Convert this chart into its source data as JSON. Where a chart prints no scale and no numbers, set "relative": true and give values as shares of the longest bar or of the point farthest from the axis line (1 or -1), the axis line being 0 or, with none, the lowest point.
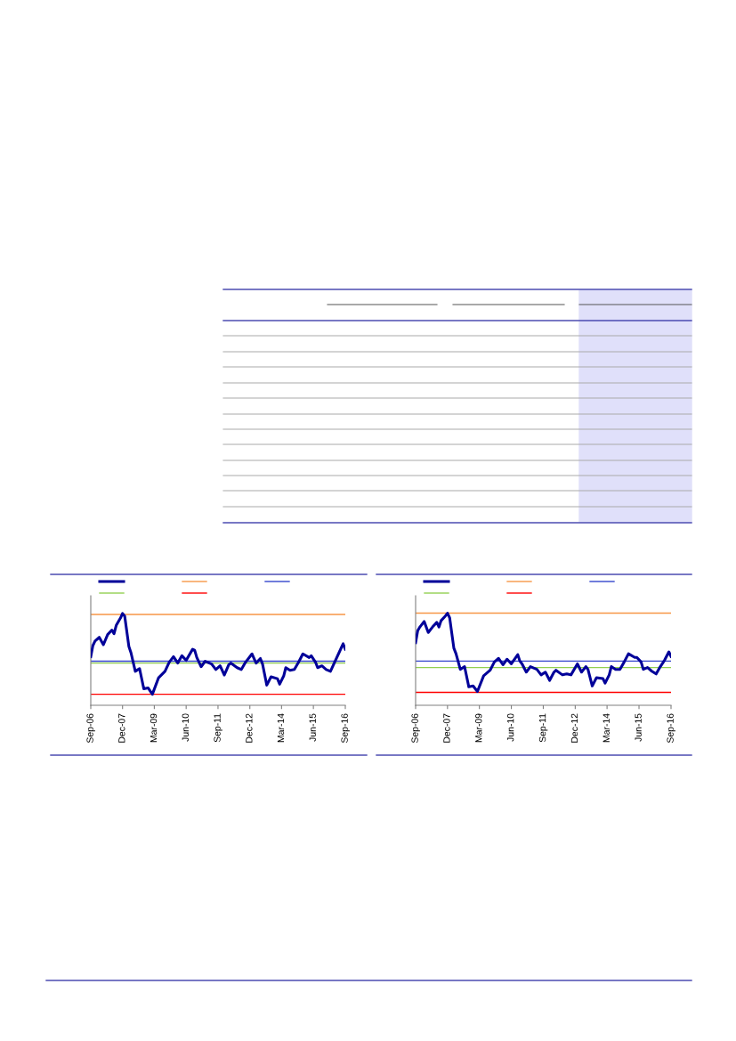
{
  "chart_data": [
    {
      "type": "line",
      "relative": true,
      "grid": false,
      "marker": "none",
      "line_style": "solid",
      "x": [
        "2006-09",
        "2006-10",
        "2006-11",
        "2007-01",
        "2007-03",
        "2007-05",
        "2007-07",
        "2007-08",
        "2007-09",
        "2007-11",
        "2007-12",
        "2008-01",
        "2008-03",
        "2008-04",
        "2008-06",
        "2008-08",
        "2008-10",
        "2008-12",
        "2009-02",
        "2009-05",
        "2009-08",
        "2009-10",
        "2009-12",
        "2010-02",
        "2010-04",
        "2010-06",
        "2010-09",
        "2010-10",
        "2010-11",
        "2011-01",
        "2011-03",
        "2011-06",
        "2011-08",
        "2011-10",
        "2011-12",
        "2012-02",
        "2012-03",
        "2012-06",
        "2012-08",
        "2012-10",
        "2013-01",
        "2013-03",
        "2013-05",
        "2013-06",
        "2013-08",
        "2013-10",
        "2014-01",
        "2014-02",
        "2014-04",
        "2014-05",
        "2014-07",
        "2014-09",
        "2014-11",
        "2015-01",
        "2015-04",
        "2015-05",
        "2015-07",
        "2015-08",
        "2015-10",
        "2015-12",
        "2016-02",
        "2016-04",
        "2016-06",
        "2016-08",
        "2016-09"
      ],
      "series": [
        {
          "color": "#000099",
          "values": [
            0.53,
            0.65,
            0.7,
            0.74,
            0.66,
            0.77,
            0.82,
            0.78,
            0.87,
            0.95,
            1.0,
            0.97,
            0.64,
            0.57,
            0.37,
            0.4,
            0.18,
            0.19,
            0.12,
            0.3,
            0.37,
            0.47,
            0.53,
            0.46,
            0.54,
            0.49,
            0.61,
            0.6,
            0.52,
            0.42,
            0.48,
            0.45,
            0.39,
            0.43,
            0.33,
            0.44,
            0.46,
            0.41,
            0.39,
            0.47,
            0.56,
            0.46,
            0.51,
            0.45,
            0.22,
            0.31,
            0.29,
            0.23,
            0.32,
            0.41,
            0.38,
            0.39,
            0.47,
            0.56,
            0.52,
            0.54,
            0.47,
            0.41,
            0.43,
            0.39,
            0.37,
            0.47,
            0.57,
            0.67,
            0.61
          ]
        }
      ],
      "ref_lines": [
        {
          "axis": "y",
          "value": 0.99,
          "color": "#f79646"
        },
        {
          "axis": "y",
          "value": 0.48,
          "color": "#3344cc"
        },
        {
          "axis": "y",
          "value": 0.46,
          "color": "#92d050"
        },
        {
          "axis": "y",
          "value": 0.12,
          "color": "#ff0000"
        }
      ],
      "xlim": [
        "2006-09",
        "2016-09"
      ],
      "xticks": [
        {
          "value": "2006-09",
          "label": "Sep-06"
        },
        {
          "value": "2007-12",
          "label": "Dec-07"
        },
        {
          "value": "2009-03",
          "label": "Mar-09"
        },
        {
          "value": "2010-06",
          "label": "Jun-10"
        },
        {
          "value": "2011-09",
          "label": "Sep-11"
        },
        {
          "value": "2012-12",
          "label": "Dec-12"
        },
        {
          "value": "2014-03",
          "label": "Mar-14"
        },
        {
          "value": "2015-06",
          "label": "Jun-15"
        },
        {
          "value": "2016-09",
          "label": "Sep-16"
        }
      ]
    },
    {
      "type": "line",
      "relative": true,
      "grid": false,
      "marker": "none",
      "line_style": "solid",
      "x": [
        "2006-09",
        "2006-10",
        "2006-11",
        "2007-01",
        "2007-03",
        "2007-05",
        "2007-07",
        "2007-08",
        "2007-09",
        "2007-11",
        "2007-12",
        "2008-01",
        "2008-03",
        "2008-04",
        "2008-06",
        "2008-08",
        "2008-10",
        "2008-12",
        "2009-02",
        "2009-05",
        "2009-08",
        "2009-10",
        "2009-12",
        "2010-02",
        "2010-04",
        "2010-06",
        "2010-09",
        "2010-10",
        "2010-11",
        "2011-01",
        "2011-03",
        "2011-06",
        "2011-08",
        "2011-10",
        "2011-12",
        "2012-02",
        "2012-03",
        "2012-06",
        "2012-08",
        "2012-10",
        "2013-01",
        "2013-03",
        "2013-05",
        "2013-06",
        "2013-08",
        "2013-10",
        "2014-01",
        "2014-02",
        "2014-04",
        "2014-05",
        "2014-07",
        "2014-09",
        "2014-11",
        "2015-01",
        "2015-04",
        "2015-05",
        "2015-07",
        "2015-08",
        "2015-10",
        "2015-12",
        "2016-02",
        "2016-04",
        "2016-06",
        "2016-08",
        "2016-09"
      ],
      "series": [
        {
          "color": "#000099",
          "values": [
            0.68,
            0.81,
            0.85,
            0.91,
            0.79,
            0.85,
            0.9,
            0.85,
            0.92,
            0.97,
            1.0,
            0.95,
            0.62,
            0.56,
            0.39,
            0.42,
            0.2,
            0.21,
            0.15,
            0.32,
            0.38,
            0.47,
            0.51,
            0.44,
            0.5,
            0.45,
            0.55,
            0.48,
            0.45,
            0.36,
            0.42,
            0.39,
            0.33,
            0.36,
            0.27,
            0.36,
            0.38,
            0.33,
            0.34,
            0.33,
            0.45,
            0.36,
            0.42,
            0.39,
            0.21,
            0.3,
            0.29,
            0.24,
            0.33,
            0.42,
            0.39,
            0.39,
            0.47,
            0.56,
            0.52,
            0.52,
            0.47,
            0.39,
            0.41,
            0.37,
            0.34,
            0.42,
            0.49,
            0.58,
            0.53
          ]
        }
      ],
      "ref_lines": [
        {
          "axis": "y",
          "value": 1.0,
          "color": "#f79646"
        },
        {
          "axis": "y",
          "value": 0.48,
          "color": "#3344cc"
        },
        {
          "axis": "y",
          "value": 0.41,
          "color": "#92d050"
        },
        {
          "axis": "y",
          "value": 0.14,
          "color": "#ff0000"
        }
      ],
      "xlim": [
        "2006-09",
        "2016-09"
      ],
      "xticks": [
        {
          "value": "2006-09",
          "label": "Sep-06"
        },
        {
          "value": "2007-12",
          "label": "Dec-07"
        },
        {
          "value": "2009-03",
          "label": "Mar-09"
        },
        {
          "value": "2010-06",
          "label": "Jun-10"
        },
        {
          "value": "2011-09",
          "label": "Sep-11"
        },
        {
          "value": "2012-12",
          "label": "Dec-12"
        },
        {
          "value": "2014-03",
          "label": "Mar-14"
        },
        {
          "value": "2015-06",
          "label": "Jun-15"
        },
        {
          "value": "2016-09",
          "label": "Sep-16"
        }
      ]
    }
  ]
}
